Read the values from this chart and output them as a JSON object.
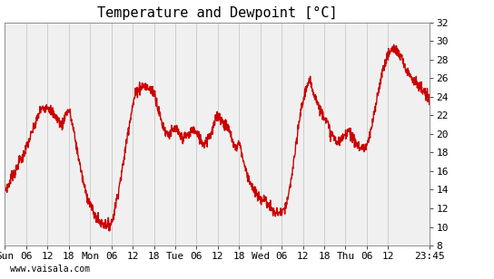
{
  "title": "Temperature and Dewpoint [°C]",
  "ylabel": "",
  "ylim": [
    8,
    32
  ],
  "yticks": [
    8,
    10,
    12,
    14,
    16,
    18,
    20,
    22,
    24,
    26,
    28,
    30,
    32
  ],
  "line_color": "#cc0000",
  "line_width": 1.0,
  "bg_color": "#ffffff",
  "plot_bg_color": "#f0f0f0",
  "grid_color": "#cccccc",
  "watermark": "www.vaisala.com",
  "xtick_labels": [
    "Sun",
    "06",
    "12",
    "18",
    "Mon",
    "06",
    "12",
    "18",
    "Tue",
    "06",
    "12",
    "18",
    "Wed",
    "06",
    "12",
    "18",
    "Thu",
    "06",
    "12",
    "23:45"
  ],
  "xtick_positions": [
    0,
    6,
    12,
    18,
    24,
    30,
    36,
    42,
    48,
    54,
    60,
    66,
    72,
    78,
    84,
    90,
    96,
    102,
    108,
    119.75
  ],
  "total_hours": 119.75,
  "title_fontsize": 11,
  "tick_fontsize": 8,
  "watermark_fontsize": 7
}
